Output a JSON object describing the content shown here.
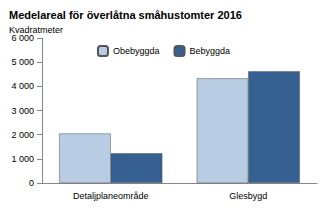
{
  "chart_data": {
    "type": "bar",
    "title": "Medelareal för överlåtna småhustomter 2016",
    "subtitle": "Kvadratmeter",
    "categories": [
      "Detaljplaneområde",
      "Glesbygd"
    ],
    "series": [
      {
        "name": "Obebyggda",
        "color": "#b8cce4",
        "values": [
          2050,
          4330
        ]
      },
      {
        "name": "Bebyggda",
        "color": "#366092",
        "values": [
          1230,
          4620
        ]
      }
    ],
    "ylim": [
      0,
      6000
    ],
    "yticks": [
      0,
      {
        "value": 1000,
        "label": "1 000"
      },
      {
        "value": 2000,
        "label": "2 000"
      },
      {
        "value": 3000,
        "label": "3 000"
      },
      {
        "value": 4000,
        "label": "4 000"
      },
      {
        "value": 5000,
        "label": "5 000"
      },
      {
        "value": 6000,
        "label": "6 000"
      }
    ],
    "grid": false,
    "legend": "top"
  }
}
